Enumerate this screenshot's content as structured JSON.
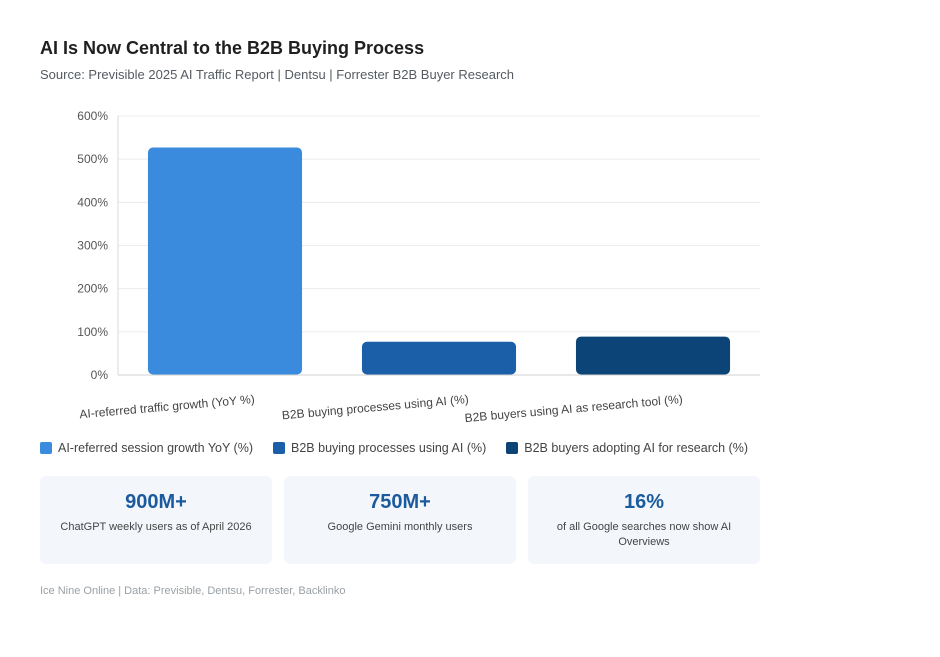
{
  "header": {
    "title": "AI Is Now Central to the B2B Buying Process",
    "subtitle": "Source: Previsible 2025 AI Traffic Report | Dentsu | Forrester B2B Buyer Research"
  },
  "chart_data": {
    "type": "bar",
    "categories": [
      "AI-referred traffic growth (YoY %)",
      "B2B buying processes using AI (%)",
      "B2B buyers using AI as research tool (%)"
    ],
    "values": [
      527,
      77,
      89
    ],
    "colors": [
      "#3a8bde",
      "#1b5fa8",
      "#0c4477"
    ],
    "ylim": [
      0,
      600
    ],
    "yticks": [
      0,
      100,
      200,
      300,
      400,
      500,
      600
    ],
    "ytick_labels": [
      "0%",
      "100%",
      "200%",
      "300%",
      "400%",
      "500%",
      "600%"
    ],
    "grid": true,
    "legend_placement": "bottom-left",
    "legend": [
      {
        "label": "AI-referred session growth YoY (%)",
        "color": "#3a8bde"
      },
      {
        "label": "B2B buying processes using AI (%)",
        "color": "#1b5fa8"
      },
      {
        "label": "B2B buyers adopting AI for research (%)",
        "color": "#0c4477"
      }
    ]
  },
  "stats": [
    {
      "value": "900M+",
      "label": "ChatGPT weekly users as of April 2026"
    },
    {
      "value": "750M+",
      "label": "Google Gemini monthly users"
    },
    {
      "value": "16%",
      "label": "of all Google searches now show AI Overviews"
    }
  ],
  "footer": "Ice Nine Online | Data: Previsible, Dentsu, Forrester, Backlinko"
}
